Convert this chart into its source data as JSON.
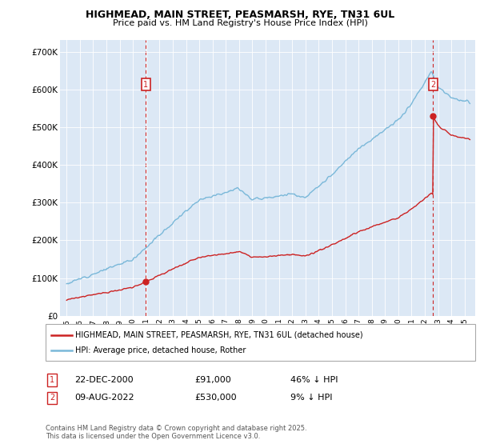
{
  "title": "HIGHMEAD, MAIN STREET, PEASMARSH, RYE, TN31 6UL",
  "subtitle": "Price paid vs. HM Land Registry's House Price Index (HPI)",
  "hpi_color": "#7ab8d9",
  "price_color": "#cc2222",
  "marker1_date": 2000.97,
  "marker1_price": 91000,
  "marker1_label": "22-DEC-2000",
  "marker2_date": 2022.61,
  "marker2_price": 530000,
  "marker2_label": "09-AUG-2022",
  "legend_label1": "HIGHMEAD, MAIN STREET, PEASMARSH, RYE, TN31 6UL (detached house)",
  "legend_label2": "HPI: Average price, detached house, Rother",
  "footnote": "Contains HM Land Registry data © Crown copyright and database right 2025.\nThis data is licensed under the Open Government Licence v3.0.",
  "ann1_date": "22-DEC-2000",
  "ann1_price": "£91,000",
  "ann1_hpi": "46% ↓ HPI",
  "ann2_date": "09-AUG-2022",
  "ann2_price": "£530,000",
  "ann2_hpi": "9% ↓ HPI",
  "ylim": [
    0,
    730000
  ],
  "xlim_start": 1994.5,
  "xlim_end": 2025.8,
  "plot_bg": "#dce8f5",
  "grid_color": "#ffffff",
  "fig_bg": "#ffffff"
}
